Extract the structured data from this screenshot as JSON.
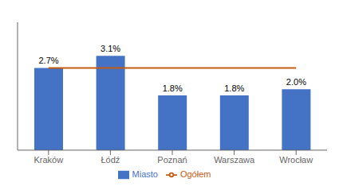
{
  "chart_data": {
    "type": "bar",
    "categories": [
      "Kraków",
      "Łódź",
      "Poznań",
      "Warszawa",
      "Wrocław"
    ],
    "series": [
      {
        "name": "Miasto",
        "type": "bar",
        "color": "#4472C4",
        "values": [
          2.7,
          3.1,
          1.8,
          1.8,
          2.0
        ],
        "value_labels": [
          "2.7%",
          "3.1%",
          "1.8%",
          "1.8%",
          "2.0%"
        ]
      },
      {
        "name": "Ogółem",
        "type": "line",
        "color": "#C55A11",
        "values": [
          2.7,
          2.7,
          2.7,
          2.7,
          2.7
        ]
      }
    ],
    "ylim": [
      0,
      4.2
    ],
    "yticks": [],
    "tick_labels": "x",
    "data_labels": true,
    "legend": "bottom",
    "grid": false
  }
}
